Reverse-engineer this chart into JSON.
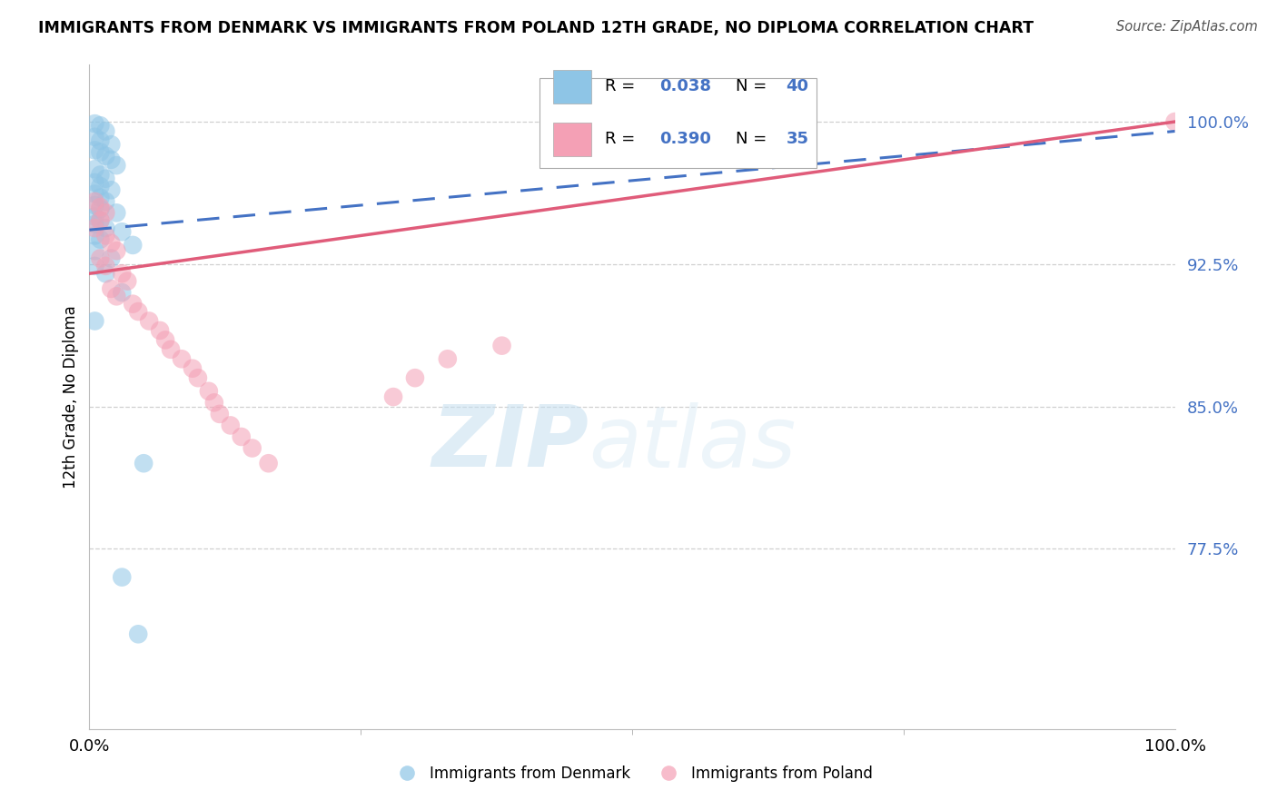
{
  "title": "IMMIGRANTS FROM DENMARK VS IMMIGRANTS FROM POLAND 12TH GRADE, NO DIPLOMA CORRELATION CHART",
  "source": "Source: ZipAtlas.com",
  "ylabel": "12th Grade, No Diploma",
  "yticks": [
    "100.0%",
    "92.5%",
    "85.0%",
    "77.5%"
  ],
  "ytick_values": [
    1.0,
    0.925,
    0.85,
    0.775
  ],
  "xlim": [
    0.0,
    1.0
  ],
  "ylim": [
    0.68,
    1.03
  ],
  "denmark_R": 0.038,
  "denmark_N": 40,
  "poland_R": 0.39,
  "poland_N": 35,
  "denmark_color": "#8ec5e6",
  "poland_color": "#f4a0b5",
  "denmark_line_color": "#4472c4",
  "poland_line_color": "#e05c7a",
  "background_color": "#ffffff",
  "grid_color": "#d0d0d0",
  "watermark_zip": "ZIP",
  "watermark_atlas": "atlas",
  "legend_denmark_label": "Immigrants from Denmark",
  "legend_poland_label": "Immigrants from Poland",
  "denmark_line_x": [
    0.0,
    1.0
  ],
  "denmark_line_y": [
    0.943,
    0.995
  ],
  "poland_line_x": [
    0.0,
    1.0
  ],
  "poland_line_y": [
    0.92,
    1.0
  ],
  "dk_x": [
    0.005,
    0.01,
    0.015,
    0.005,
    0.01,
    0.02,
    0.005,
    0.01,
    0.015,
    0.02,
    0.025,
    0.005,
    0.01,
    0.015,
    0.005,
    0.01,
    0.02,
    0.005,
    0.01,
    0.015,
    0.005,
    0.01,
    0.025,
    0.005,
    0.01,
    0.005,
    0.015,
    0.03,
    0.005,
    0.01,
    0.04,
    0.005,
    0.02,
    0.005,
    0.015,
    0.03,
    0.005,
    0.05,
    0.03,
    0.045
  ],
  "dk_y": [
    0.999,
    0.998,
    0.995,
    0.992,
    0.99,
    0.988,
    0.985,
    0.984,
    0.982,
    0.98,
    0.977,
    0.975,
    0.972,
    0.97,
    0.968,
    0.966,
    0.964,
    0.962,
    0.96,
    0.958,
    0.956,
    0.954,
    0.952,
    0.95,
    0.948,
    0.946,
    0.944,
    0.942,
    0.94,
    0.938,
    0.935,
    0.932,
    0.928,
    0.924,
    0.92,
    0.91,
    0.895,
    0.82,
    0.76,
    0.73
  ],
  "pl_x": [
    0.005,
    0.01,
    0.015,
    0.01,
    0.005,
    0.015,
    0.02,
    0.025,
    0.01,
    0.015,
    0.03,
    0.035,
    0.02,
    0.025,
    0.04,
    0.045,
    0.055,
    0.065,
    0.07,
    0.075,
    0.085,
    0.095,
    0.1,
    0.11,
    0.115,
    0.12,
    0.13,
    0.14,
    0.15,
    0.165,
    0.28,
    0.3,
    0.33,
    0.38,
    1.0
  ],
  "pl_y": [
    0.958,
    0.955,
    0.952,
    0.948,
    0.944,
    0.94,
    0.936,
    0.932,
    0.928,
    0.924,
    0.92,
    0.916,
    0.912,
    0.908,
    0.904,
    0.9,
    0.895,
    0.89,
    0.885,
    0.88,
    0.875,
    0.87,
    0.865,
    0.858,
    0.852,
    0.846,
    0.84,
    0.834,
    0.828,
    0.82,
    0.855,
    0.865,
    0.875,
    0.882,
    1.0
  ]
}
